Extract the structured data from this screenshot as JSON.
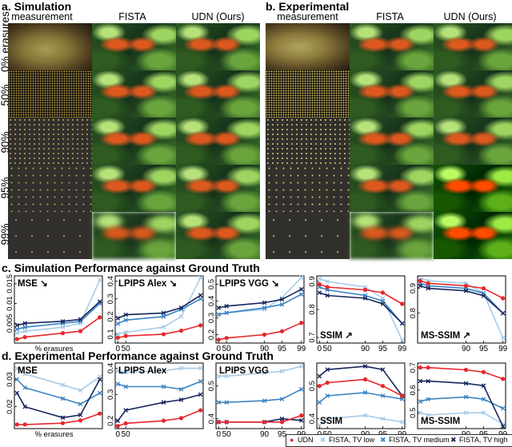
{
  "headers": {
    "sim_label": "a. Simulation",
    "sim_measurement": "measurement",
    "sim_fista": "FISTA",
    "sim_udn": "UDN (Ours)",
    "exp_label": "b. Experimental",
    "exp_measurement": "measurement",
    "exp_fista": "FISTA",
    "exp_udn": "UDN (Ours)"
  },
  "rows": [
    "0% erasures",
    "50%",
    "90%",
    "95%",
    "99%"
  ],
  "section_c": "c. Simulation Performance against Ground Truth",
  "section_d": "d. Experimental Performance against Ground Truth",
  "xlabel": "% erasures",
  "colors": {
    "UDN": "#e8262b",
    "FISTA_low": "#a8cbe8",
    "FISTA_medium": "#3a84c3",
    "FISTA_high": "#16265e"
  },
  "legend": [
    "UDN",
    "FISTA, TV low",
    "FISTA, TV medium",
    "FISTA, TV high"
  ],
  "chart_data": [
    {
      "id": "c-mse",
      "type": "line",
      "title": "MSE",
      "arrow": "↘",
      "x": [
        0,
        50,
        90,
        95,
        99
      ],
      "ylim": [
        0,
        0.017
      ],
      "yticks": [
        "0.005",
        "0.01",
        "0.015"
      ],
      "xticks": [],
      "xlabel": "% erasures",
      "series": [
        {
          "name": "UDN",
          "values": [
            0.001,
            0.0015,
            0.0025,
            0.003,
            0.0065
          ]
        },
        {
          "name": "FISTA, TV low",
          "values": [
            0.0025,
            0.003,
            0.004,
            0.005,
            0.016
          ]
        },
        {
          "name": "FISTA, TV medium",
          "values": [
            0.0035,
            0.004,
            0.005,
            0.0055,
            0.01
          ]
        },
        {
          "name": "FISTA, TV high",
          "values": [
            0.0045,
            0.005,
            0.0055,
            0.006,
            0.0105
          ]
        }
      ]
    },
    {
      "id": "c-lpips-alex",
      "type": "line",
      "title": "LPIPS Alex",
      "arrow": "↘",
      "x": [
        0,
        50,
        90,
        95,
        99
      ],
      "ylim": [
        0.05,
        0.43
      ],
      "yticks": [
        "0.1",
        "0.2",
        "0.3",
        "0.4"
      ],
      "xticks": [
        "0",
        "50"
      ],
      "xlabel": "",
      "series": [
        {
          "name": "UDN",
          "values": [
            0.08,
            0.09,
            0.1,
            0.12,
            0.15
          ]
        },
        {
          "name": "FISTA, TV low",
          "values": [
            0.1,
            0.11,
            0.14,
            0.2,
            0.42
          ]
        },
        {
          "name": "FISTA, TV medium",
          "values": [
            0.16,
            0.18,
            0.2,
            0.24,
            0.3
          ]
        },
        {
          "name": "FISTA, TV high",
          "values": [
            0.19,
            0.21,
            0.22,
            0.25,
            0.32
          ]
        }
      ]
    },
    {
      "id": "c-lpips-vgg",
      "type": "line",
      "title": "LPIPS VGG",
      "arrow": "↘",
      "x": [
        0,
        50,
        90,
        95,
        99
      ],
      "ylim": [
        0.15,
        0.55
      ],
      "yticks": [
        "0.2",
        "0.3",
        "0.4",
        "0.5"
      ],
      "xticks": [
        "0",
        "50",
        "90",
        "95",
        "99"
      ],
      "xlabel": "",
      "series": [
        {
          "name": "UDN",
          "values": [
            0.17,
            0.18,
            0.2,
            0.22,
            0.27
          ]
        },
        {
          "name": "FISTA, TV low",
          "values": [
            0.32,
            0.33,
            0.35,
            0.42,
            0.54
          ]
        },
        {
          "name": "FISTA, TV medium",
          "values": [
            0.32,
            0.33,
            0.36,
            0.38,
            0.44
          ]
        },
        {
          "name": "FISTA, TV high",
          "values": [
            0.36,
            0.37,
            0.39,
            0.41,
            0.47
          ]
        }
      ]
    },
    {
      "id": "c-ssim",
      "type": "line",
      "title": "SSIM",
      "arrow": "↗",
      "x": [
        0,
        50,
        90,
        95,
        99
      ],
      "ylim": [
        0.68,
        0.92
      ],
      "yticks": [
        "0.7",
        "0.8",
        "0.9"
      ],
      "xticks": [
        "0",
        "50",
        "90",
        "95",
        "99"
      ],
      "xlabel": "",
      "series": [
        {
          "name": "UDN",
          "values": [
            0.89,
            0.88,
            0.87,
            0.86,
            0.82
          ]
        },
        {
          "name": "FISTA, TV low",
          "values": [
            0.91,
            0.9,
            0.88,
            0.84,
            0.69
          ]
        },
        {
          "name": "FISTA, TV medium",
          "values": [
            0.88,
            0.87,
            0.85,
            0.83,
            0.75
          ]
        },
        {
          "name": "FISTA, TV high",
          "values": [
            0.86,
            0.85,
            0.84,
            0.82,
            0.75
          ]
        }
      ]
    },
    {
      "id": "c-ms-ssim",
      "type": "line",
      "title": "MS-SSIM",
      "arrow": "↗",
      "x": [
        0,
        50,
        90,
        95,
        99
      ],
      "ylim": [
        0.68,
        0.95
      ],
      "yticks": [
        "0.8",
        "0.9"
      ],
      "xticks": [
        "90",
        "95",
        "99"
      ],
      "xlabel": "",
      "series": [
        {
          "name": "UDN",
          "values": [
            0.93,
            0.92,
            0.91,
            0.9,
            0.86
          ]
        },
        {
          "name": "FISTA, TV low",
          "values": [
            0.94,
            0.93,
            0.92,
            0.88,
            0.7
          ]
        },
        {
          "name": "FISTA, TV medium",
          "values": [
            0.92,
            0.91,
            0.9,
            0.88,
            0.8
          ]
        },
        {
          "name": "FISTA, TV high",
          "values": [
            0.91,
            0.9,
            0.89,
            0.87,
            0.8
          ]
        }
      ]
    },
    {
      "id": "d-mse",
      "type": "line",
      "title": "MSE",
      "arrow": "",
      "x": [
        0,
        50,
        90,
        95,
        99
      ],
      "ylim": [
        0.012,
        0.036
      ],
      "yticks": [
        "0.02",
        "0.03"
      ],
      "xticks": [],
      "xlabel": "% erasures",
      "series": [
        {
          "name": "UDN",
          "values": [
            0.0135,
            0.0135,
            0.014,
            0.015,
            0.0175
          ]
        },
        {
          "name": "FISTA, TV low",
          "values": [
            0.034,
            0.032,
            0.028,
            0.026,
            0.031
          ]
        },
        {
          "name": "FISTA, TV medium",
          "values": [
            0.03,
            0.027,
            0.023,
            0.021,
            0.025
          ]
        },
        {
          "name": "FISTA, TV high",
          "values": [
            0.025,
            0.02,
            0.016,
            0.017,
            0.03
          ]
        }
      ]
    },
    {
      "id": "d-lpips-alex",
      "type": "line",
      "title": "LPIPS Alex",
      "arrow": "",
      "x": [
        0,
        50,
        90,
        95,
        99
      ],
      "ylim": [
        0.17,
        0.42
      ],
      "yticks": [
        "0.2",
        "0.3",
        "0.4"
      ],
      "xticks": [
        "0",
        "50"
      ],
      "xlabel": "",
      "series": [
        {
          "name": "UDN",
          "values": [
            0.18,
            0.19,
            0.2,
            0.21,
            0.24
          ]
        },
        {
          "name": "FISTA, TV low",
          "values": [
            0.39,
            0.385,
            0.39,
            0.4,
            0.4
          ]
        },
        {
          "name": "FISTA, TV medium",
          "values": [
            0.34,
            0.33,
            0.33,
            0.32,
            0.35
          ]
        },
        {
          "name": "FISTA, TV high",
          "values": [
            0.2,
            0.24,
            0.27,
            0.28,
            0.3
          ]
        }
      ]
    },
    {
      "id": "d-lpips-vgg",
      "type": "line",
      "title": "LPIPS VGG",
      "arrow": "",
      "x": [
        0,
        50,
        90,
        95,
        99
      ],
      "ylim": [
        0.37,
        0.57
      ],
      "yticks": [
        "0.4",
        "0.5"
      ],
      "xticks": [
        "0",
        "50",
        "90",
        "95",
        "99"
      ],
      "xlabel": "",
      "series": [
        {
          "name": "UDN",
          "values": [
            0.39,
            0.39,
            0.39,
            0.39,
            0.41
          ]
        },
        {
          "name": "FISTA, TV low",
          "values": [
            0.53,
            0.53,
            0.54,
            0.545,
            0.56
          ]
        },
        {
          "name": "FISTA, TV medium",
          "values": [
            0.45,
            0.45,
            0.455,
            0.46,
            0.49
          ]
        },
        {
          "name": "FISTA, TV high",
          "values": [
            0.39,
            0.39,
            0.39,
            0.4,
            0.395
          ]
        }
      ]
    },
    {
      "id": "d-ssim",
      "type": "line",
      "title": "SSIM",
      "arrow": "",
      "x": [
        0,
        50,
        90,
        95,
        99
      ],
      "ylim": [
        0.37,
        0.57
      ],
      "yticks": [
        "0.4",
        "0.5"
      ],
      "xticks": [
        "0",
        "50",
        "90",
        "95",
        "99"
      ],
      "xlabel": "",
      "series": [
        {
          "name": "UDN",
          "values": [
            0.5,
            0.51,
            0.52,
            0.5,
            0.47
          ]
        },
        {
          "name": "FISTA, TV low",
          "values": [
            0.38,
            0.4,
            0.41,
            0.4,
            0.39
          ]
        },
        {
          "name": "FISTA, TV medium",
          "values": [
            0.45,
            0.47,
            0.48,
            0.47,
            0.46
          ]
        },
        {
          "name": "FISTA, TV high",
          "values": [
            0.53,
            0.55,
            0.56,
            0.55,
            0.47
          ]
        }
      ]
    },
    {
      "id": "d-ms-ssim",
      "type": "line",
      "title": "MS-SSIM",
      "arrow": "",
      "x": [
        0,
        50,
        90,
        95,
        99
      ],
      "ylim": [
        0.43,
        0.72
      ],
      "yticks": [
        "0.5",
        "0.6",
        "0.7"
      ],
      "xticks": [
        "90",
        "95",
        "99"
      ],
      "xlabel": "",
      "series": [
        {
          "name": "UDN",
          "values": [
            0.7,
            0.7,
            0.69,
            0.68,
            0.65
          ]
        },
        {
          "name": "FISTA, TV low",
          "values": [
            0.5,
            0.49,
            0.5,
            0.5,
            0.45
          ]
        },
        {
          "name": "FISTA, TV medium",
          "values": [
            0.55,
            0.56,
            0.57,
            0.56,
            0.52
          ]
        },
        {
          "name": "FISTA, TV high",
          "values": [
            0.64,
            0.64,
            0.63,
            0.62,
            0.44
          ]
        }
      ]
    }
  ]
}
